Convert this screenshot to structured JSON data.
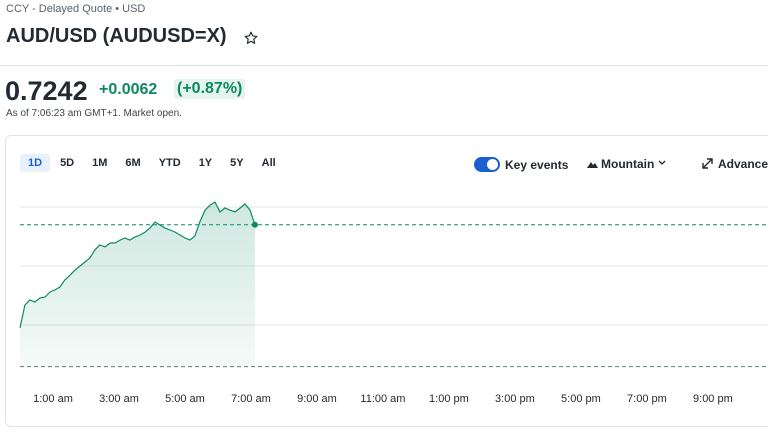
{
  "header": {
    "breadcrumb": "CCY - Delayed Quote • USD",
    "title": "AUD/USD (AUDUSD=X)",
    "price": "0.7242",
    "change": "+0.0062",
    "change_percent": "(+0.87%)",
    "timestamp": "As of 7:06:23 am GMT+1. Market open."
  },
  "toolbar": {
    "ranges": [
      "1D",
      "5D",
      "1M",
      "6M",
      "YTD",
      "1Y",
      "5Y",
      "All"
    ],
    "key_events": "Key events",
    "chart_style": "Mountain",
    "advanced": "Advanced"
  },
  "chart_data": {
    "type": "area",
    "color": "#0b8a63",
    "x": [
      0,
      0.15,
      0.3,
      0.45,
      0.61,
      0.76,
      0.91,
      1.06,
      1.21,
      1.36,
      1.52,
      1.67,
      1.82,
      1.97,
      2.12,
      2.27,
      2.42,
      2.58,
      2.73,
      2.88,
      3.03,
      3.18,
      3.33,
      3.48,
      3.64,
      3.79,
      3.94,
      4.09,
      4.24,
      4.39,
      4.55,
      4.7,
      4.85,
      5,
      5.15,
      5.3,
      5.45,
      5.61,
      5.76,
      5.91,
      6.06,
      6.21,
      6.36,
      6.52,
      6.67,
      6.82,
      6.97,
      7.12
    ],
    "values": [
      0.71969,
      0.72069,
      0.72091,
      0.72082,
      0.721,
      0.72104,
      0.72126,
      0.72135,
      0.72148,
      0.72179,
      0.722,
      0.72222,
      0.7224,
      0.72257,
      0.72275,
      0.7231,
      0.72332,
      0.72323,
      0.7234,
      0.7234,
      0.72353,
      0.72362,
      0.72353,
      0.72366,
      0.72375,
      0.72388,
      0.72406,
      0.72432,
      0.72419,
      0.72406,
      0.72397,
      0.72388,
      0.72375,
      0.72362,
      0.72353,
      0.72371,
      0.72432,
      0.72484,
      0.72506,
      0.72519,
      0.72476,
      0.72493,
      0.72484,
      0.72476,
      0.72493,
      0.72511,
      0.72484,
      0.7242
    ],
    "previous_close": 0.718,
    "xlim": [
      0,
      22.67
    ],
    "xticks": [
      {
        "value": 1,
        "label": "1:00 am"
      },
      {
        "value": 3,
        "label": "3:00 am"
      },
      {
        "value": 5,
        "label": "5:00 am"
      },
      {
        "value": 7,
        "label": "7:00 am"
      },
      {
        "value": 9,
        "label": "9:00 am"
      },
      {
        "value": 11,
        "label": "11:00 am"
      },
      {
        "value": 13,
        "label": "1:00 pm"
      },
      {
        "value": 15,
        "label": "3:00 pm"
      },
      {
        "value": 17,
        "label": "5:00 pm"
      },
      {
        "value": 19,
        "label": "7:00 pm"
      },
      {
        "value": 21,
        "label": "9:00 pm"
      }
    ],
    "ylim": [
      0.7175,
      0.7255
    ]
  }
}
